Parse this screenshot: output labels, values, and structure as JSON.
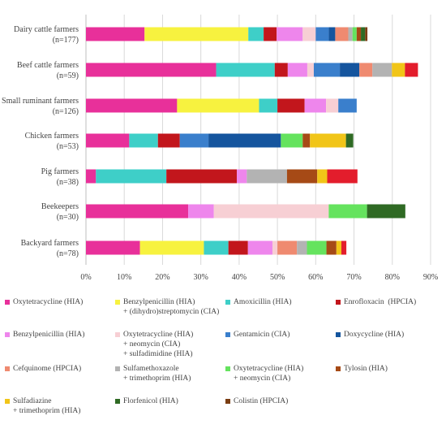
{
  "chart_data": {
    "type": "bar",
    "stacked": true,
    "orientation": "horizontal",
    "xlim": [
      0,
      90
    ],
    "x_ticks": [
      "0%",
      "10%",
      "20%",
      "30%",
      "40%",
      "50%",
      "60%",
      "70%",
      "80%",
      "90%"
    ],
    "grid": true,
    "legend_position": "bottom",
    "categories": [
      [
        "Dairy cattle farmers",
        "(n=177)"
      ],
      [
        "Beef cattle farmers",
        "(n=59)"
      ],
      [
        "Small ruminant farmers",
        "(n=126)"
      ],
      [
        "Chicken farmers",
        "(n=53)"
      ],
      [
        "Pig farmers",
        "(n=38)"
      ],
      [
        "Beekeepers",
        "(n=30)"
      ],
      [
        "Backyard farmers",
        "(n=78)"
      ]
    ],
    "series": [
      {
        "name": [
          "Oxytetracycline (HIA)"
        ],
        "color": "#e8309a",
        "values": [
          15.3,
          34.0,
          23.8,
          11.3,
          2.6,
          26.7,
          14.1
        ]
      },
      {
        "name": [
          "Benzylpenicillin (HIA)",
          "+ (dihydro)streptomycin (CIA)"
        ],
        "color": "#f7f23f",
        "values": [
          27.1,
          0,
          21.4,
          0,
          0,
          0,
          16.7
        ]
      },
      {
        "name": [
          "Amoxicillin (HIA)"
        ],
        "color": "#3ecfc8",
        "values": [
          4.0,
          15.3,
          4.8,
          7.5,
          18.4,
          0,
          6.4
        ]
      },
      {
        "name": [
          "Enrofloxacin  (HPCIA)"
        ],
        "color": "#c2161c",
        "values": [
          3.4,
          3.4,
          7.1,
          5.7,
          18.4,
          0,
          5.1
        ]
      },
      {
        "name": [
          "Benzylpenicillin (HIA)"
        ],
        "color": "#ee86ec",
        "values": [
          6.8,
          5.1,
          5.6,
          0,
          2.6,
          6.7,
          6.4
        ]
      },
      {
        "name": [
          "Oxytetracycline (HIA)",
          "+ neomycin (CIA)",
          "+ sulfadimidine (HIA)"
        ],
        "color": "#f7cfd4",
        "values": [
          3.4,
          1.7,
          3.2,
          0,
          0,
          30.0,
          1.3
        ]
      },
      {
        "name": [
          "Gentamicin (CIA)"
        ],
        "color": "#3a7fcc",
        "values": [
          3.4,
          6.8,
          4.8,
          7.5,
          0,
          0,
          0
        ]
      },
      {
        "name": [
          "Doxycycline (HIA)"
        ],
        "color": "#15559e",
        "values": [
          1.7,
          5.1,
          0,
          18.9,
          0,
          0,
          0
        ]
      },
      {
        "name": [
          "Cefquinome (HPCIA)"
        ],
        "color": "#ef8a70",
        "values": [
          3.4,
          3.4,
          0,
          0,
          0,
          0,
          5.1
        ]
      },
      {
        "name": [
          "Sulfamethoxazole",
          "+ trimethoprim (HIA)"
        ],
        "color": "#b3b3b3",
        "values": [
          1.1,
          5.1,
          0,
          0,
          10.5,
          0,
          2.6
        ]
      },
      {
        "name": [
          "Oxytetracycline (HIA)",
          "+ neomycin (CIA)"
        ],
        "color": "#65e35e",
        "values": [
          1.1,
          0,
          0,
          5.7,
          0,
          10.0,
          5.1
        ]
      },
      {
        "name": [
          "Tylosin (HIA)"
        ],
        "color": "#a64a16",
        "values": [
          1.1,
          0,
          0,
          1.9,
          7.9,
          0,
          2.6
        ]
      },
      {
        "name": [
          "Sulfadiazine",
          "+ trimethoprim (HIA)"
        ],
        "color": "#f1c518",
        "values": [
          0,
          3.4,
          0,
          9.4,
          2.6,
          0,
          1.3
        ]
      },
      {
        "name": [
          "Florfenicol (HIA)"
        ],
        "color": "#2f6a24",
        "values": [
          1.1,
          0,
          0,
          1.9,
          0,
          10.0,
          0
        ]
      },
      {
        "name": [
          "Colistin (HPCIA)"
        ],
        "color": "#7a3d12",
        "values": [
          0.6,
          0,
          0,
          0,
          0,
          0,
          0
        ]
      },
      {
        "name": [],
        "color": "#e31d2c",
        "values": [
          0,
          3.4,
          0,
          0,
          7.9,
          0,
          1.3
        ]
      }
    ]
  }
}
